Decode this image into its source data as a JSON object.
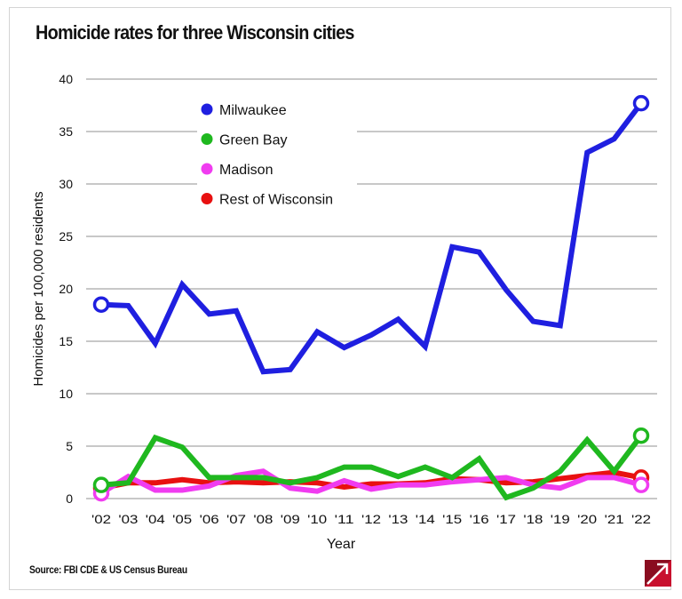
{
  "chart_data": {
    "type": "line",
    "title": "Homicide rates for three Wisconsin cities",
    "xlabel": "Year",
    "ylabel": "Homicides per 100,000 residents",
    "ylim": [
      0,
      40
    ],
    "yticks": [
      0,
      5,
      10,
      15,
      20,
      25,
      30,
      35,
      40
    ],
    "grid": true,
    "legend_placement": "top-left",
    "categories": [
      "'02",
      "'03",
      "'04",
      "'05",
      "'06",
      "'07",
      "'08",
      "'09",
      "'10",
      "'11",
      "'12",
      "'13",
      "'14",
      "'15",
      "'16",
      "'17",
      "'18",
      "'19",
      "'20",
      "'21",
      "'22"
    ],
    "series": [
      {
        "name": "Milwaukee",
        "color": "#1f1fe0",
        "values": [
          18.5,
          18.4,
          14.8,
          20.4,
          17.6,
          17.9,
          12.1,
          12.3,
          15.9,
          14.4,
          15.6,
          17.1,
          14.5,
          24.0,
          23.5,
          19.9,
          16.9,
          16.5,
          33.0,
          34.3,
          37.7
        ]
      },
      {
        "name": "Green Bay",
        "color": "#1fb81f",
        "values": [
          1.3,
          1.5,
          5.8,
          4.9,
          2.0,
          2.0,
          2.0,
          1.5,
          2.0,
          3.0,
          3.0,
          2.1,
          3.0,
          2.0,
          3.8,
          0.1,
          1.0,
          2.6,
          5.6,
          2.6,
          6.0
        ]
      },
      {
        "name": "Madison",
        "color": "#f03cf0",
        "values": [
          0.5,
          2.1,
          0.8,
          0.8,
          1.2,
          2.2,
          2.6,
          1.0,
          0.7,
          1.7,
          0.9,
          1.3,
          1.3,
          1.6,
          1.8,
          2.0,
          1.3,
          1.0,
          2.0,
          2.0,
          1.3
        ]
      },
      {
        "name": "Rest of Wisconsin",
        "color": "#e81010",
        "values": [
          1.0,
          1.5,
          1.5,
          1.8,
          1.5,
          1.6,
          1.5,
          1.6,
          1.5,
          1.1,
          1.4,
          1.4,
          1.5,
          1.9,
          1.8,
          1.5,
          1.6,
          1.9,
          2.2,
          2.5,
          2.0
        ]
      }
    ]
  },
  "source": "Source: FBI CDE & US Census Bureau",
  "logo": {
    "name": "publisher-logo",
    "color": "#c8102e"
  }
}
